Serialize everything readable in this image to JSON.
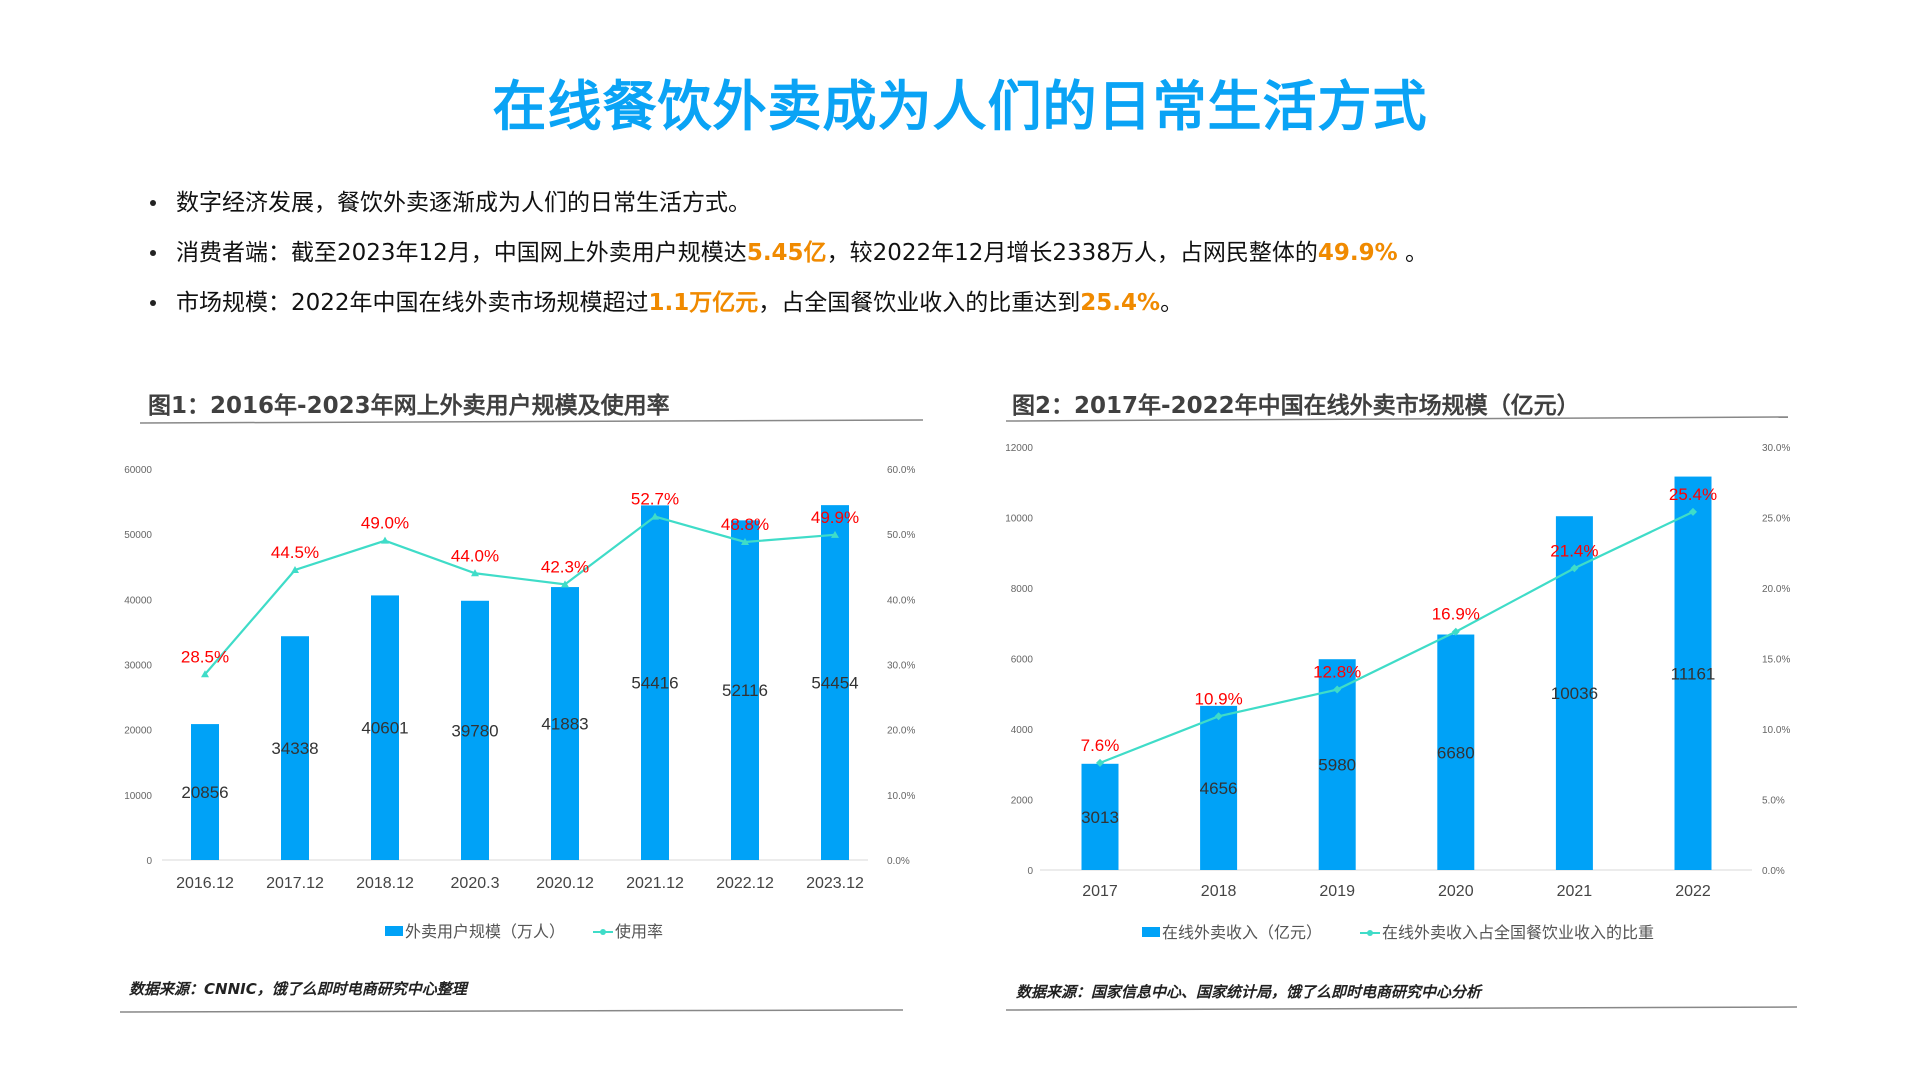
{
  "title": "在线餐饮外卖成为人们的日常生活方式",
  "bullets": [
    [
      {
        "text": "数字经济发展，餐饮外卖逐渐成为人们的日常生活方式。"
      }
    ],
    [
      {
        "text": "消费者端：截至2023年12月，中国网上外卖用户规模达"
      },
      {
        "text": "5.45亿",
        "hl": true
      },
      {
        "text": "，较2022年12月增长2338万人，占网民整体的"
      },
      {
        "text": "49.9%",
        "hl": true
      },
      {
        "text": " 。"
      }
    ],
    [
      {
        "text": "市场规模：2022年中国在线外卖市场规模超过"
      },
      {
        "text": "1.1万亿元",
        "hl": true
      },
      {
        "text": "，占全国餐饮业收入的比重达到"
      },
      {
        "text": "25.4%",
        "hl": true
      },
      {
        "text": "。"
      }
    ]
  ],
  "colors": {
    "title": "#0aa3f5",
    "bar": "#00a2f7",
    "line": "#3fdcc8",
    "pct_label": "#ff0000",
    "highlight": "#f08a00"
  },
  "chart_data": [
    {
      "type": "bar+line",
      "title": "图1：2016年-2023年网上外卖用户规模及使用率",
      "categories": [
        "2016.12",
        "2017.12",
        "2018.12",
        "2020.3",
        "2020.12",
        "2021.12",
        "2022.12",
        "2023.12"
      ],
      "series": [
        {
          "name": "外卖用户规模（万人）",
          "type": "bar",
          "axis": "left",
          "values": [
            20856,
            34338,
            40601,
            39780,
            41883,
            54416,
            52116,
            54454
          ]
        },
        {
          "name": "使用率",
          "type": "line",
          "axis": "right",
          "values": [
            28.5,
            44.5,
            49.0,
            44.0,
            42.3,
            52.7,
            48.8,
            49.9
          ],
          "labels": [
            "28.5%",
            "44.5%",
            "49.0%",
            "44.0%",
            "42.3%",
            "52.7%",
            "48.8%",
            "49.9%"
          ]
        }
      ],
      "ylim_left": [
        0,
        60000
      ],
      "yticks_left": [
        "0",
        "10000",
        "20000",
        "30000",
        "40000",
        "50000",
        "60000"
      ],
      "ylim_right": [
        0,
        60
      ],
      "yticks_right": [
        "0.0%",
        "10.0%",
        "20.0%",
        "30.0%",
        "40.0%",
        "50.0%",
        "60.0%"
      ],
      "legend": "bottom",
      "grid": false,
      "source": "数据来源：CNNIC，饿了么即时电商研究中心整理"
    },
    {
      "type": "bar+line",
      "title": "图2：2017年-2022年中国在线外卖市场规模（亿元）",
      "categories": [
        "2017",
        "2018",
        "2019",
        "2020",
        "2021",
        "2022"
      ],
      "series": [
        {
          "name": "在线外卖收入（亿元）",
          "type": "bar",
          "axis": "left",
          "values": [
            3013,
            4656,
            5980,
            6680,
            10036,
            11161
          ]
        },
        {
          "name": "在线外卖收入占全国餐饮业收入的比重",
          "type": "line",
          "axis": "right",
          "values": [
            7.6,
            10.9,
            12.8,
            16.9,
            21.4,
            25.4
          ],
          "labels": [
            "7.6%",
            "10.9%",
            "12.8%",
            "16.9%",
            "21.4%",
            "25.4%"
          ]
        }
      ],
      "ylim_left": [
        0,
        12000
      ],
      "yticks_left": [
        "0",
        "2000",
        "4000",
        "6000",
        "8000",
        "10000",
        "12000"
      ],
      "ylim_right": [
        0,
        30
      ],
      "yticks_right": [
        "0.0%",
        "5.0%",
        "10.0%",
        "15.0%",
        "20.0%",
        "25.0%",
        "30.0%"
      ],
      "legend": "bottom",
      "grid": false,
      "source": "数据来源：国家信息中心、国家统计局，饿了么即时电商研究中心分析"
    }
  ]
}
